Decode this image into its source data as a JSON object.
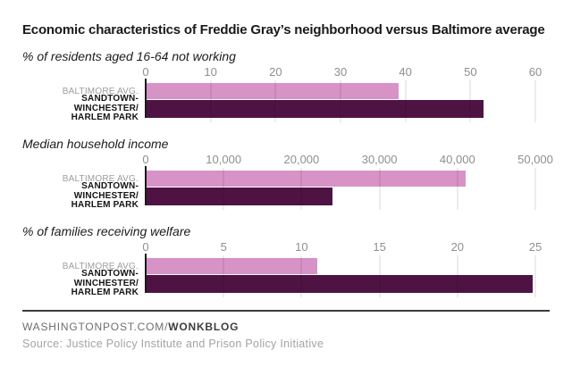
{
  "title": "Economic characteristics of Freddie Gray’s neighborhood versus Baltimore average",
  "colors": {
    "baltimore_bar": "#d792c6",
    "sandtown_bar": "#4e1343",
    "zero_axis": "#1a1a1a",
    "gridline": "rgba(0,0,0,0.15)"
  },
  "chart_data": [
    {
      "type": "bar",
      "orientation": "horizontal",
      "subtitle": "% of residents aged 16-64 not working",
      "axis": {
        "min": 0,
        "max": 60,
        "tick_step": 10,
        "ticks": [
          "0",
          "10",
          "20",
          "30",
          "40",
          "50",
          "60"
        ]
      },
      "grid": true,
      "legend": "none",
      "rows": [
        {
          "label_lines": [
            "BALTIMORE AVG."
          ],
          "value": 39,
          "color": "#d792c6"
        },
        {
          "label_lines": [
            "SANDTOWN-WINCHESTER/",
            "HARLEM PARK"
          ],
          "value": 52,
          "color": "#4e1343"
        }
      ]
    },
    {
      "type": "bar",
      "orientation": "horizontal",
      "subtitle": "Median household income",
      "axis": {
        "min": 0,
        "max": 50000,
        "tick_step": 10000,
        "ticks": [
          "0",
          "10,000",
          "20,000",
          "30,000",
          "40,000",
          "50,000"
        ]
      },
      "grid": true,
      "legend": "none",
      "rows": [
        {
          "label_lines": [
            "BALTIMORE AVG."
          ],
          "value": 41000,
          "color": "#d792c6"
        },
        {
          "label_lines": [
            "SANDTOWN-WINCHESTER/",
            "HARLEM PARK"
          ],
          "value": 24000,
          "color": "#4e1343"
        }
      ]
    },
    {
      "type": "bar",
      "orientation": "horizontal",
      "subtitle": "% of families receiving welfare",
      "axis": {
        "min": 0,
        "max": 25,
        "tick_step": 5,
        "ticks": [
          "0",
          "5",
          "10",
          "15",
          "20",
          "25"
        ]
      },
      "grid": true,
      "legend": "none",
      "rows": [
        {
          "label_lines": [
            "BALTIMORE AVG."
          ],
          "value": 11,
          "color": "#d792c6"
        },
        {
          "label_lines": [
            "SANDTOWN-WINCHESTER/",
            "HARLEM PARK"
          ],
          "value": 24.8,
          "color": "#4e1343"
        }
      ]
    }
  ],
  "footer": {
    "site": "WASHINGTONPOST.COM/",
    "blog": "WONKBLOG",
    "source": "Source: Justice Policy Institute and Prison Policy Initiative"
  }
}
